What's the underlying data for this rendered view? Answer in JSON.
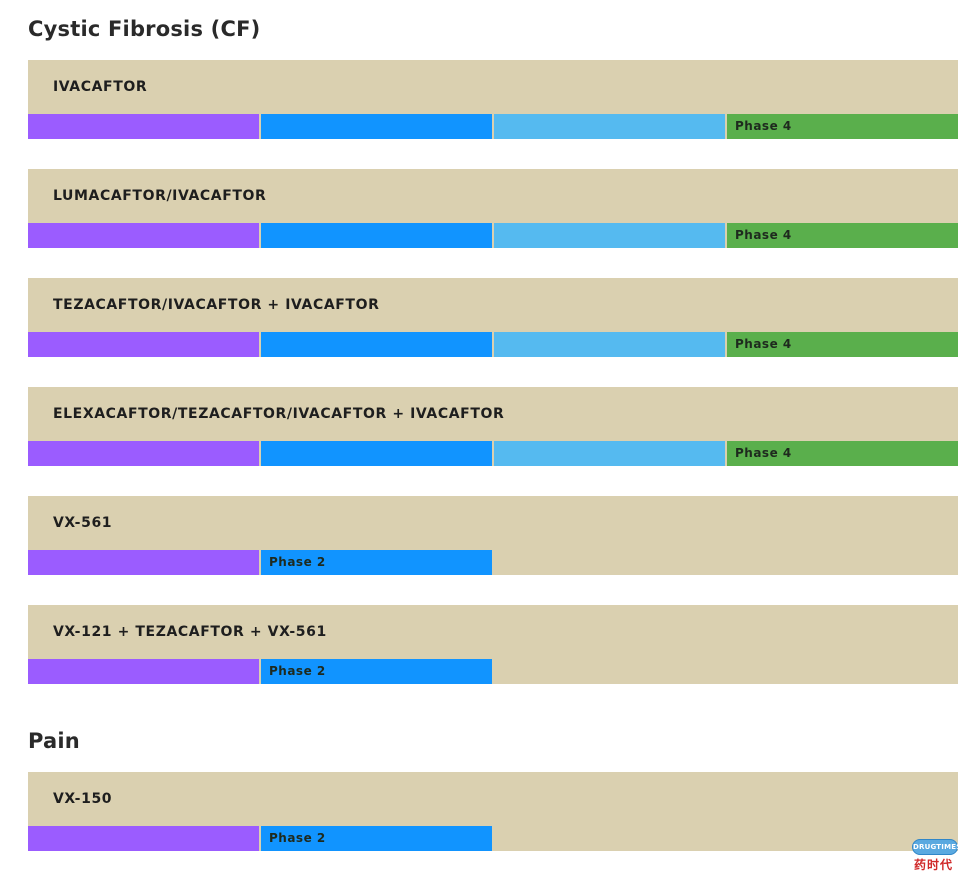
{
  "colors": {
    "card_bg": "#dad0b0",
    "discovery": "#9b5cff",
    "phase1": "#1194ff",
    "phase2": "#55baf0",
    "phase3": "#5aaf4c"
  },
  "sections": [
    {
      "title": "Cystic Fibrosis (CF)",
      "drugs": [
        {
          "name": "IVACAFTOR",
          "stages_reached": 4,
          "phase_label": "Phase 4"
        },
        {
          "name": "LUMACAFTOR/IVACAFTOR",
          "stages_reached": 4,
          "phase_label": "Phase 4"
        },
        {
          "name": "TEZACAFTOR/IVACAFTOR + IVACAFTOR",
          "stages_reached": 4,
          "phase_label": "Phase 4"
        },
        {
          "name": "ELEXACAFTOR/TEZACAFTOR/IVACAFTOR + IVACAFTOR",
          "stages_reached": 4,
          "phase_label": "Phase 4"
        },
        {
          "name": "VX-561",
          "stages_reached": 2,
          "phase_label": "Phase 2"
        },
        {
          "name": "VX-121 + TEZACAFTOR + VX-561",
          "stages_reached": 2,
          "phase_label": "Phase 2"
        }
      ]
    },
    {
      "title": "Pain",
      "drugs": [
        {
          "name": "VX-150",
          "stages_reached": 2,
          "phase_label": "Phase 2"
        }
      ]
    }
  ],
  "watermark": {
    "latin": "DRUGTIMES",
    "chinese": "药时代"
  }
}
